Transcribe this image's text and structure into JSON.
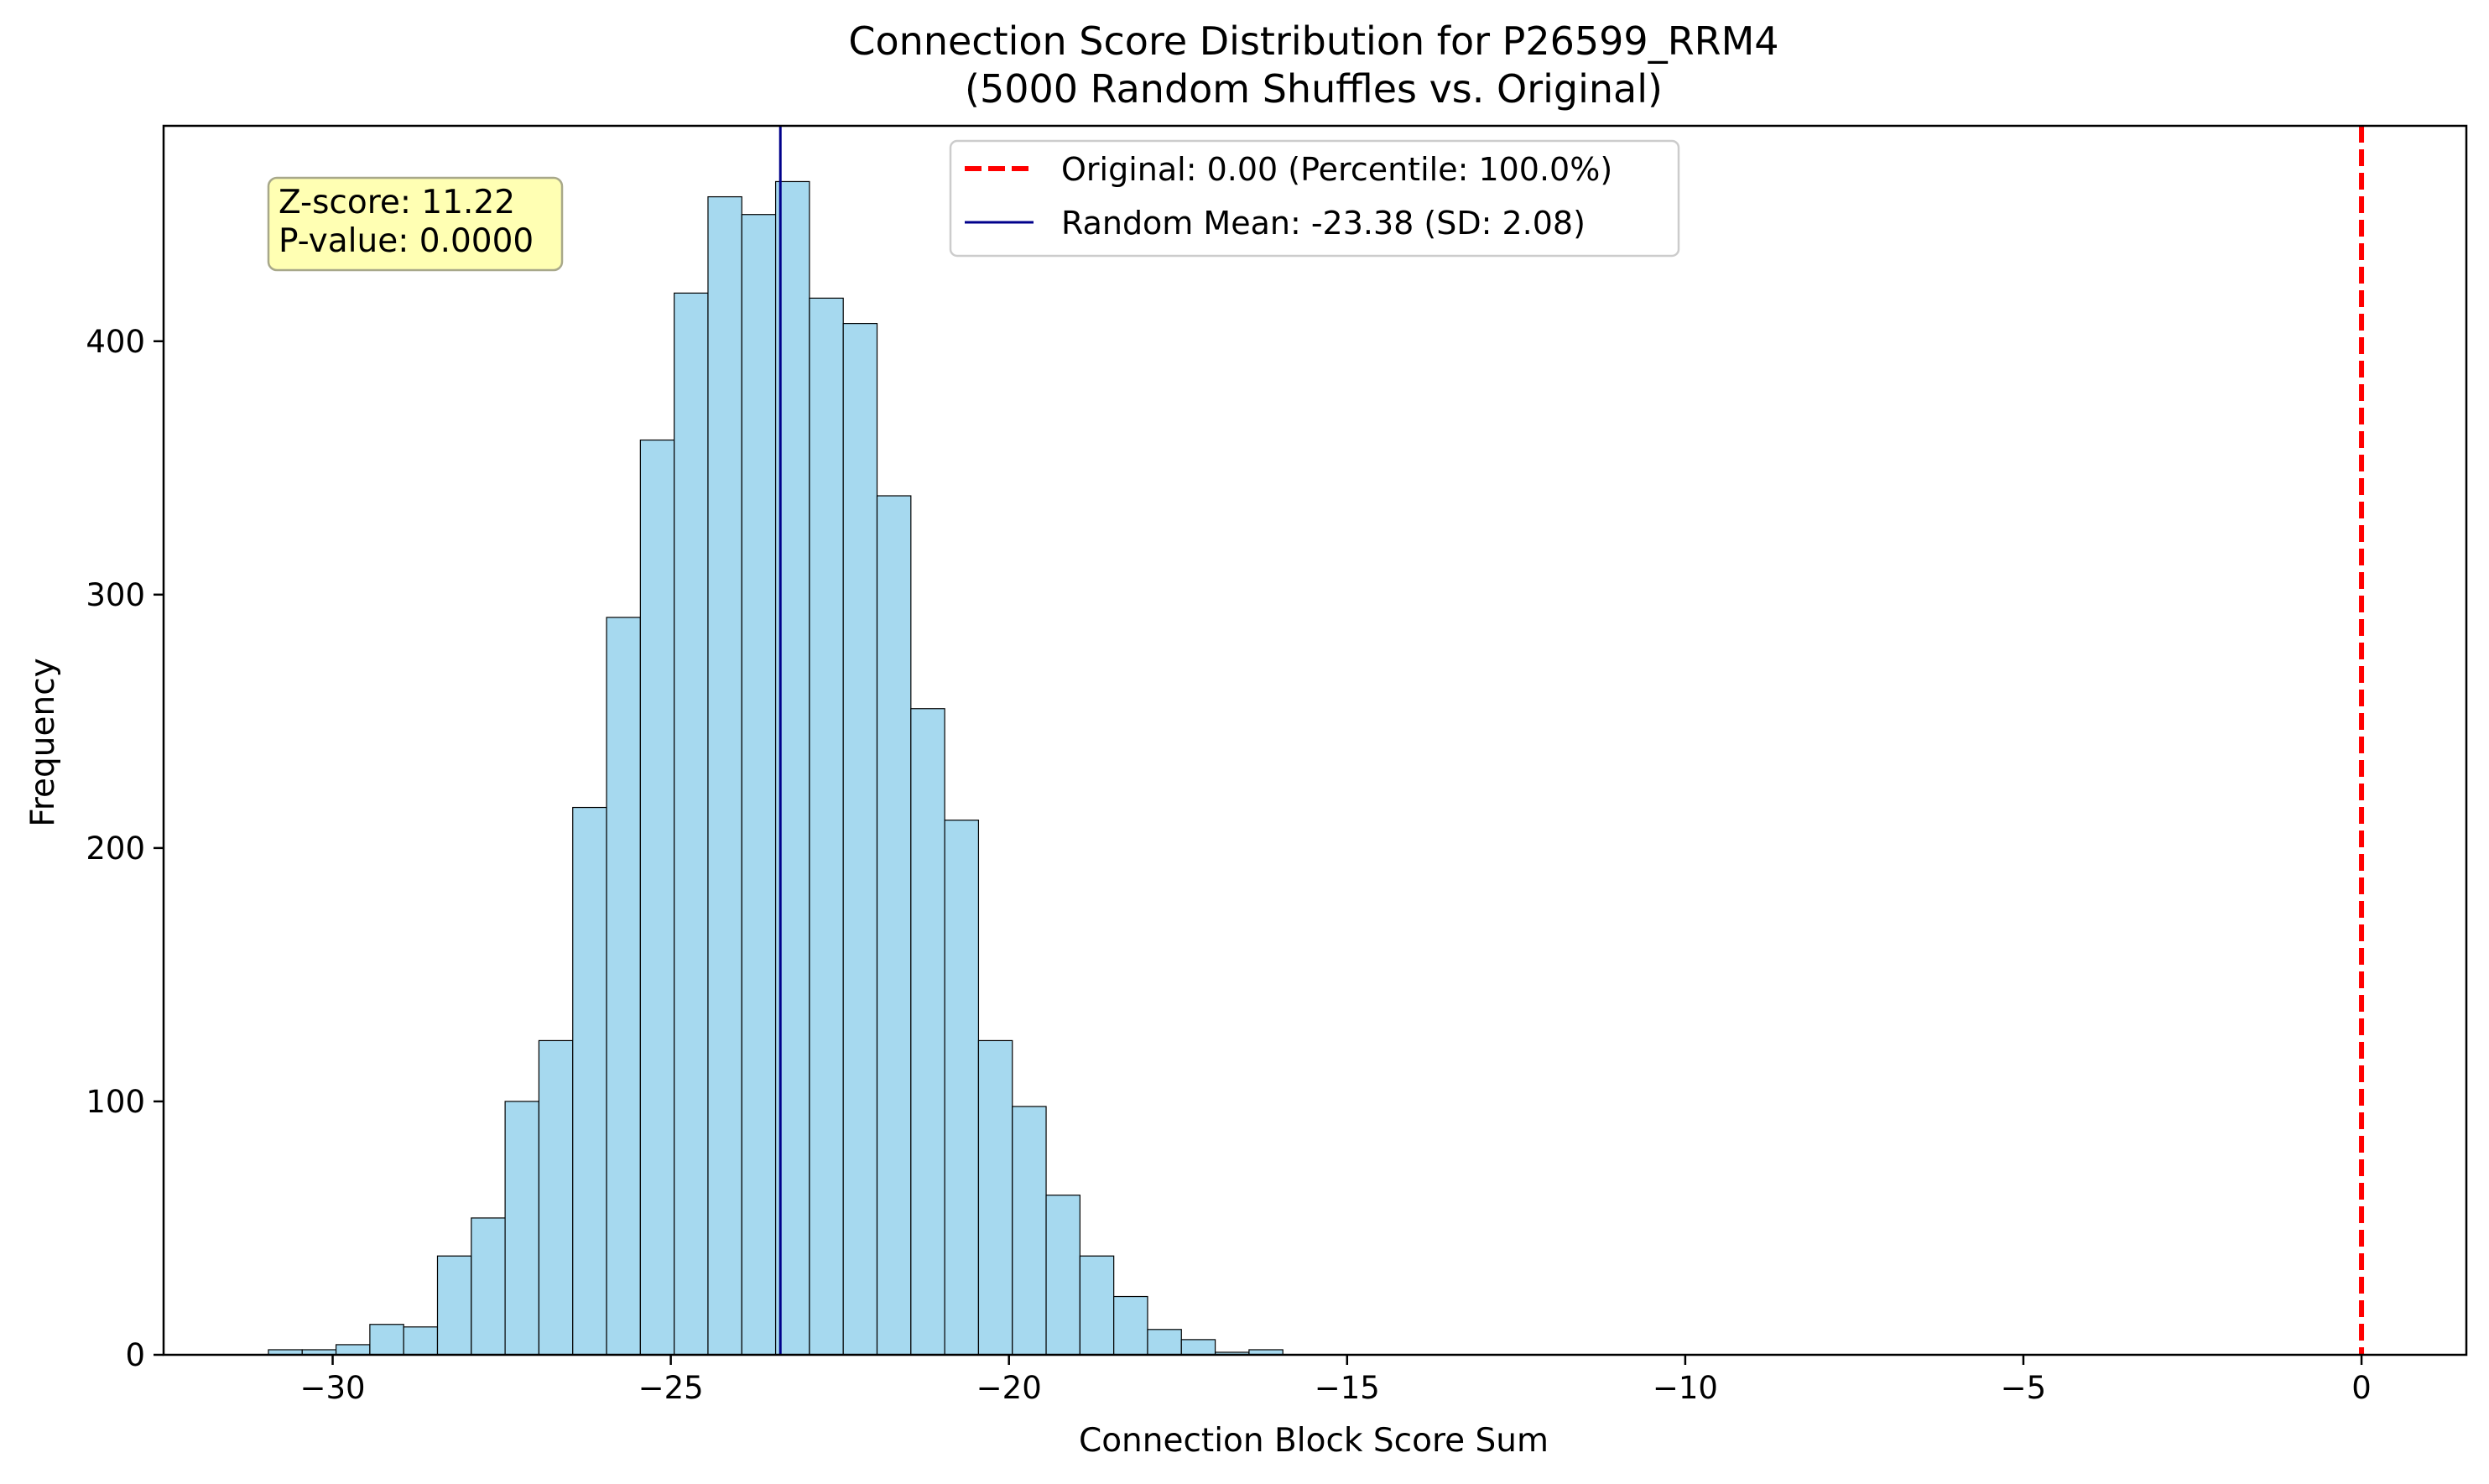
{
  "chart_data": {
    "type": "bar",
    "title_line1": "Connection Score Distribution for P26599_RRM4",
    "title_line2": "(5000 Random Shuffles vs. Original)",
    "xlabel": "Connection Block Score Sum",
    "ylabel": "Frequency",
    "xlim": [
      -32.5,
      1.55
    ],
    "ylim": [
      0,
      485
    ],
    "xticks": [
      -30,
      -25,
      -20,
      -15,
      -10,
      -5,
      0
    ],
    "xtick_labels": [
      "−30",
      "−25",
      "−20",
      "−15",
      "−10",
      "−5",
      "0"
    ],
    "yticks": [
      0,
      100,
      200,
      300,
      400
    ],
    "ytick_labels": [
      "0",
      "100",
      "200",
      "300",
      "400"
    ],
    "bin_start": -30.95,
    "bin_width": 0.5,
    "values": [
      2,
      2,
      4,
      12,
      11,
      39,
      54,
      100,
      124,
      216,
      291,
      361,
      419,
      457,
      450,
      463,
      417,
      407,
      339,
      255,
      211,
      124,
      98,
      63,
      39,
      23,
      10,
      6,
      1,
      2
    ],
    "bar_color": "#a6d9ef",
    "bar_edge_color": "#000000",
    "original": {
      "value": 0.0,
      "color": "#ff0000",
      "style": "dashed"
    },
    "random_mean": {
      "value": -23.38,
      "color": "#00008b",
      "style": "solid"
    },
    "legend": {
      "placement": "top-center",
      "entries": [
        "Original: 0.00 (Percentile: 100.0%)",
        "Random Mean: -23.38 (SD: 2.08)"
      ]
    },
    "stats_box": {
      "placement": "top-left",
      "lines": [
        "Z-score: 11.22",
        "P-value: 0.0000"
      ],
      "background": "#ffffb3"
    }
  }
}
